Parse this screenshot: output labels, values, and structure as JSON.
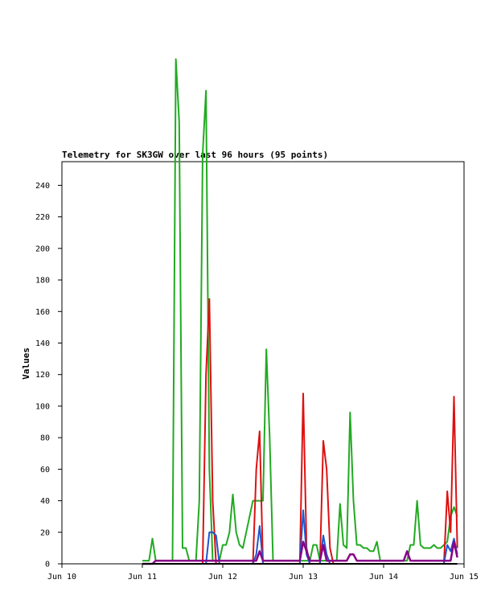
{
  "chart_data": {
    "type": "line",
    "title": "Telemetry for SK3GW over last 96 hours (95 points)",
    "ylabel": "Values",
    "xlabel": "",
    "ylim": [
      0,
      255
    ],
    "x_ticks": [
      "Jun 10",
      "Jun 11",
      "Jun 12",
      "Jun 13",
      "Jun 14",
      "Jun 15"
    ],
    "y_ticks": [
      0,
      20,
      40,
      60,
      80,
      100,
      120,
      140,
      160,
      180,
      200,
      220,
      240
    ],
    "grid": false,
    "x_start": "Jun 11",
    "x_step_hours": 1,
    "series": [
      {
        "color": "#22aa22",
        "values": [
          2,
          2,
          2,
          16,
          2,
          2,
          2,
          2,
          2,
          2,
          320,
          280,
          10,
          10,
          2,
          2,
          2,
          40,
          260,
          300,
          60,
          2,
          2,
          2,
          12,
          12,
          20,
          44,
          20,
          12,
          10,
          20,
          30,
          40,
          40,
          40,
          40,
          136,
          80,
          2,
          2,
          2,
          2,
          2,
          2,
          2,
          2,
          2,
          2,
          2,
          2,
          12,
          12,
          2,
          2,
          2,
          2,
          2,
          2,
          38,
          12,
          10,
          96,
          40,
          12,
          12,
          10,
          10,
          8,
          8,
          14,
          2,
          2,
          2,
          2,
          2,
          2,
          2,
          2,
          2,
          12,
          12,
          40,
          12,
          10,
          10,
          10,
          12,
          10,
          10,
          12,
          14,
          30,
          36,
          30
        ]
      },
      {
        "color": "#dd1111",
        "values": [
          0,
          0,
          0,
          0,
          0,
          0,
          0,
          0,
          0,
          0,
          0,
          0,
          0,
          0,
          0,
          0,
          0,
          0,
          0,
          120,
          168,
          40,
          0,
          0,
          0,
          0,
          0,
          0,
          0,
          0,
          0,
          0,
          0,
          0,
          60,
          84,
          0,
          0,
          0,
          0,
          0,
          0,
          0,
          0,
          0,
          0,
          0,
          0,
          108,
          10,
          0,
          0,
          0,
          0,
          78,
          60,
          10,
          0,
          0,
          0,
          0,
          0,
          0,
          0,
          0,
          0,
          0,
          0,
          0,
          0,
          0,
          0,
          0,
          0,
          0,
          0,
          0,
          0,
          0,
          0,
          0,
          0,
          0,
          0,
          0,
          0,
          0,
          0,
          0,
          0,
          0,
          46,
          20,
          106,
          10
        ]
      },
      {
        "color": "#2255cc",
        "values": [
          0,
          0,
          0,
          0,
          0,
          0,
          0,
          0,
          0,
          0,
          0,
          0,
          0,
          0,
          0,
          0,
          0,
          0,
          0,
          0,
          20,
          20,
          18,
          0,
          0,
          0,
          0,
          0,
          0,
          0,
          0,
          0,
          0,
          0,
          6,
          24,
          0,
          0,
          0,
          0,
          0,
          0,
          0,
          0,
          0,
          0,
          0,
          0,
          34,
          6,
          0,
          0,
          0,
          0,
          18,
          6,
          0,
          0,
          0,
          0,
          0,
          0,
          0,
          0,
          0,
          0,
          0,
          0,
          0,
          0,
          0,
          0,
          0,
          0,
          0,
          0,
          0,
          0,
          0,
          0,
          0,
          0,
          0,
          0,
          0,
          0,
          0,
          0,
          0,
          0,
          0,
          12,
          8,
          16,
          6
        ]
      },
      {
        "color": "#880088",
        "values": [
          0,
          0,
          0,
          0,
          2,
          2,
          2,
          2,
          2,
          2,
          2,
          2,
          2,
          2,
          2,
          2,
          2,
          2,
          2,
          2,
          2,
          2,
          2,
          2,
          2,
          2,
          2,
          2,
          2,
          2,
          2,
          2,
          2,
          2,
          2,
          8,
          2,
          2,
          2,
          2,
          2,
          2,
          2,
          2,
          2,
          2,
          2,
          2,
          14,
          8,
          2,
          2,
          2,
          2,
          12,
          2,
          2,
          2,
          2,
          2,
          2,
          2,
          6,
          6,
          2,
          2,
          2,
          2,
          2,
          2,
          2,
          2,
          2,
          2,
          2,
          2,
          2,
          2,
          2,
          8,
          2,
          2,
          2,
          2,
          2,
          2,
          2,
          2,
          2,
          2,
          2,
          2,
          2,
          14,
          4
        ]
      },
      {
        "color": "#000000",
        "values": [
          0,
          0,
          0,
          0,
          0,
          0,
          0,
          0,
          0,
          0,
          0,
          0,
          0,
          0,
          0,
          0,
          0,
          0,
          0,
          0,
          0,
          0,
          0,
          0,
          0,
          0,
          0,
          0,
          0,
          0,
          0,
          0,
          0,
          0,
          0,
          0,
          0,
          0,
          0,
          0,
          0,
          0,
          0,
          0,
          0,
          0,
          0,
          0,
          0,
          0,
          0,
          0,
          0,
          0,
          0,
          0,
          0,
          0,
          0,
          0,
          0,
          0,
          0,
          0,
          0,
          0,
          0,
          0,
          0,
          0,
          0,
          0,
          0,
          0,
          0,
          0,
          0,
          0,
          0,
          0,
          0,
          0,
          0,
          0,
          0,
          0,
          0,
          0,
          0,
          0,
          0,
          0,
          0,
          0,
          0
        ]
      }
    ]
  }
}
